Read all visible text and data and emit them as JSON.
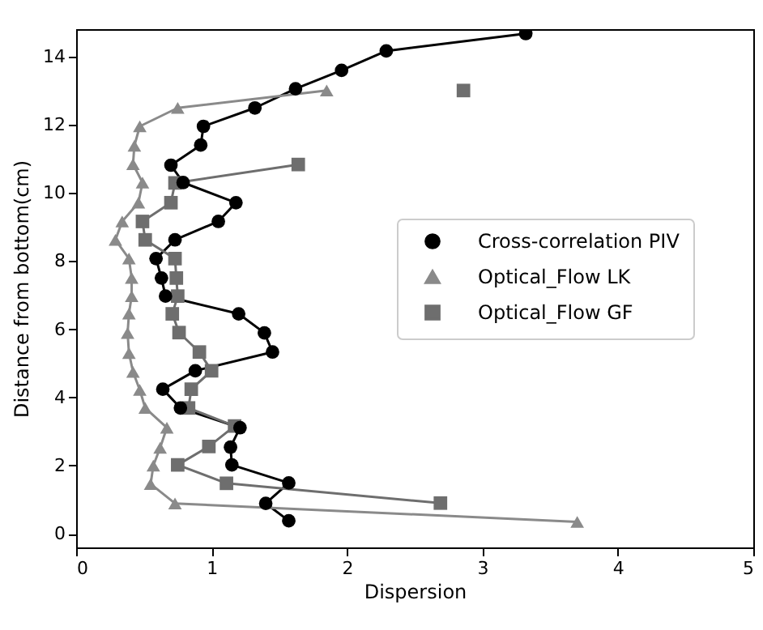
{
  "chart_data": {
    "type": "line",
    "xlabel": "Dispersion",
    "ylabel": "Distance from bottom(cm)",
    "xlim": [
      0,
      5
    ],
    "ylim": [
      -0.4,
      14.8
    ],
    "xticks": [
      0,
      1,
      2,
      3,
      4,
      5
    ],
    "yticks": [
      0,
      2,
      4,
      6,
      8,
      10,
      12,
      14
    ],
    "grid": false,
    "legend": "right",
    "line_style": "solid",
    "series": [
      {
        "name": "Cross-correlation PIV",
        "color": "#000000",
        "marker": "circle",
        "x": [
          1.57,
          1.4,
          1.57,
          1.15,
          1.14,
          1.21,
          0.77,
          0.64,
          0.88,
          1.45,
          1.39,
          1.2,
          0.66,
          0.63,
          0.59,
          0.73,
          1.05,
          1.18,
          0.79,
          0.7,
          0.92,
          0.94,
          1.32,
          1.62,
          1.96,
          2.29,
          3.32
        ],
        "values": [
          0.38,
          0.89,
          1.49,
          2.02,
          2.54,
          3.11,
          3.69,
          4.24,
          4.78,
          5.33,
          5.89,
          6.45,
          6.97,
          7.5,
          8.07,
          8.62,
          9.16,
          9.71,
          10.3,
          10.81,
          11.4,
          11.95,
          12.49,
          13.05,
          13.59,
          14.16,
          14.67
        ]
      },
      {
        "name": "Optical_Flow LK",
        "color": "#8a8a8a",
        "marker": "triangle",
        "x": [
          3.7,
          0.73,
          0.55,
          0.57,
          0.62,
          0.67,
          0.51,
          0.47,
          0.42,
          0.39,
          0.38,
          0.39,
          0.41,
          0.41,
          0.39,
          0.29,
          0.34,
          0.46,
          0.49,
          0.42,
          0.43,
          0.47,
          0.75,
          1.85,
          null
        ],
        "values": [
          0.35,
          0.89,
          1.46,
          2.0,
          2.52,
          3.11,
          3.69,
          4.22,
          4.75,
          5.3,
          5.89,
          6.46,
          6.97,
          7.5,
          8.07,
          8.62,
          9.16,
          9.71,
          10.3,
          10.84,
          11.38,
          11.95,
          12.49,
          13.0,
          null
        ]
      },
      {
        "name": "Optical_Flow GF",
        "color": "#6e6e6e",
        "marker": "square",
        "x": [
          null,
          2.69,
          1.11,
          0.75,
          0.98,
          1.17,
          0.83,
          0.85,
          1.0,
          0.91,
          0.76,
          0.71,
          0.75,
          0.74,
          0.73,
          0.51,
          0.49,
          0.7,
          0.73,
          1.64,
          null,
          2.86
        ],
        "values": [
          null,
          0.9,
          1.48,
          2.02,
          2.56,
          3.16,
          3.69,
          4.24,
          4.78,
          5.33,
          5.9,
          6.45,
          6.97,
          7.5,
          8.07,
          8.62,
          9.16,
          9.71,
          10.29,
          10.83,
          null,
          13.0
        ]
      }
    ]
  }
}
